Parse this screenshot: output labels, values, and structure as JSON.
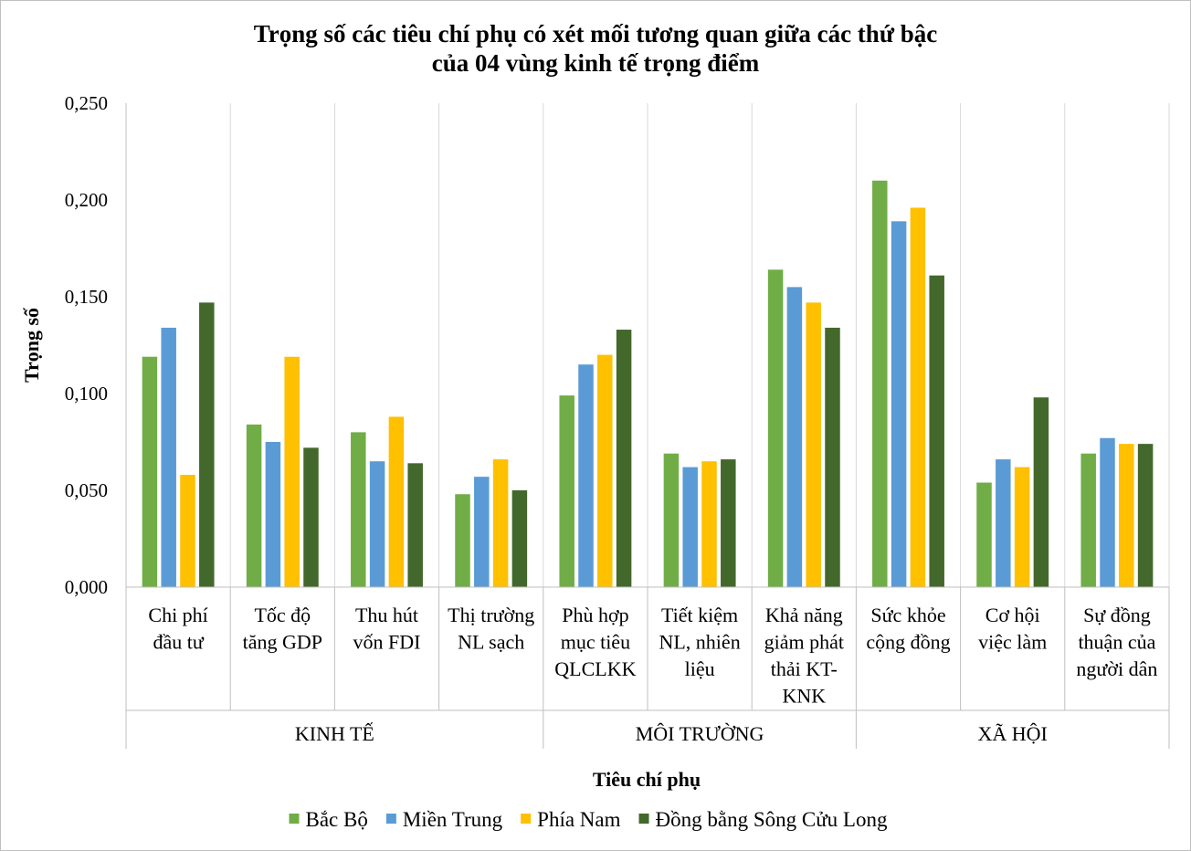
{
  "chart_data": {
    "type": "bar",
    "title": [
      "Trọng số các tiêu chí phụ có xét mối tương quan giữa các thứ bậc",
      "của 04 vùng kinh tế trọng điểm"
    ],
    "xlabel": "Tiêu chí phụ",
    "ylabel": "Trọng số",
    "ylim": [
      0,
      0.25
    ],
    "yticks": [
      {
        "value": 0.25,
        "label": "0,250"
      },
      {
        "value": 0.2,
        "label": "0,200"
      },
      {
        "value": 0.15,
        "label": "0,150"
      },
      {
        "value": 0.1,
        "label": "0,100"
      },
      {
        "value": 0.05,
        "label": "0,050"
      },
      {
        "value": 0,
        "label": "0,000"
      }
    ],
    "categories": [
      [
        "Chi phí",
        "đầu tư"
      ],
      [
        "Tốc độ",
        "tăng GDP"
      ],
      [
        "Thu hút",
        "vốn FDI"
      ],
      [
        "Thị trường",
        "NL sạch"
      ],
      [
        "Phù hợp",
        "mục tiêu",
        "QLCLKK"
      ],
      [
        "Tiết  kiệm",
        "NL, nhiên",
        "liệu"
      ],
      [
        "Khả năng",
        "giảm phát",
        "thải KT-",
        "KNK"
      ],
      [
        "Sức khỏe",
        "cộng đồng"
      ],
      [
        "Cơ hội",
        "việc làm"
      ],
      [
        "Sự đồng",
        "thuận của",
        "người dân"
      ]
    ],
    "groups": [
      {
        "label": "KINH TẾ",
        "start": 0,
        "end": 3
      },
      {
        "label": "MÔI TRƯỜNG",
        "start": 4,
        "end": 6
      },
      {
        "label": "XÃ HỘI",
        "start": 7,
        "end": 9
      }
    ],
    "series": [
      {
        "name": "Bắc Bộ",
        "color": "#70ad47",
        "values": [
          0.119,
          0.084,
          0.08,
          0.048,
          0.099,
          0.069,
          0.164,
          0.21,
          0.054,
          0.069
        ]
      },
      {
        "name": "Miền Trung",
        "color": "#5b9bd5",
        "values": [
          0.134,
          0.075,
          0.065,
          0.057,
          0.115,
          0.062,
          0.155,
          0.189,
          0.066,
          0.077
        ]
      },
      {
        "name": "Phía Nam",
        "color": "#ffc000",
        "values": [
          0.058,
          0.119,
          0.088,
          0.066,
          0.12,
          0.065,
          0.147,
          0.196,
          0.062,
          0.074
        ]
      },
      {
        "name": "Đồng bằng Sông Cửu Long",
        "color": "#43682b",
        "values": [
          0.147,
          0.072,
          0.064,
          0.05,
          0.133,
          0.066,
          0.134,
          0.161,
          0.098,
          0.074
        ]
      }
    ],
    "legend_position": "bottom",
    "grid": "vertical"
  }
}
